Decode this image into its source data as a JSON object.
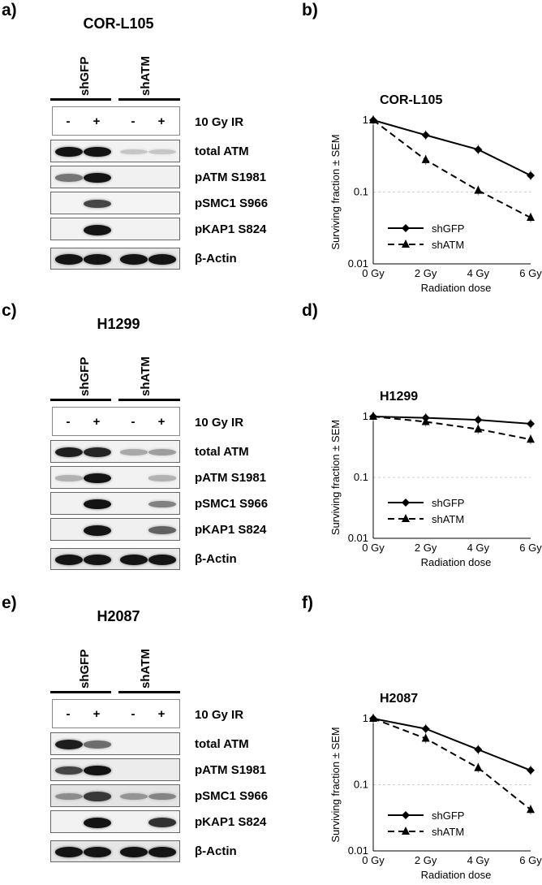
{
  "condition_labels": [
    "shGFP",
    "shATM"
  ],
  "ir_signs": [
    "-",
    "+",
    "-",
    "+"
  ],
  "ir_label": "10 Gy IR",
  "band_colors": {
    "strong": "#202020",
    "light": "#9a9a9a"
  },
  "rows": [
    {
      "panel": "a)",
      "cell_line": "COR-L105",
      "blots": [
        {
          "label": "total ATM",
          "bg": "#f2f2f2",
          "lanes": [
            0.95,
            0.95,
            0.05,
            0.05
          ]
        },
        {
          "label": "pATM S1981",
          "bg": "#f1f1f1",
          "lanes": [
            0.45,
            0.95,
            0.0,
            0.0
          ]
        },
        {
          "label": "pSMC1 S966",
          "bg": "#f4f4f4",
          "lanes": [
            0.0,
            0.7,
            0.0,
            0.0
          ]
        },
        {
          "label": "pKAP1 S824",
          "bg": "#f2f2f2",
          "lanes": [
            0.0,
            1.0,
            0.0,
            0.0
          ]
        },
        {
          "label": "β-Actin",
          "bg": "#e8e8e8",
          "lanes": [
            0.95,
            0.95,
            0.95,
            0.95
          ]
        }
      ],
      "chart_panel": "b)"
    },
    {
      "panel": "c)",
      "cell_line": "H1299",
      "blots": [
        {
          "label": "total ATM",
          "bg": "#f2f2f2",
          "lanes": [
            0.9,
            0.85,
            0.2,
            0.25
          ]
        },
        {
          "label": "pATM S1981",
          "bg": "#f2f2f2",
          "lanes": [
            0.15,
            0.95,
            0.0,
            0.15
          ]
        },
        {
          "label": "pSMC1 S966",
          "bg": "#f2f2f2",
          "lanes": [
            0.0,
            0.95,
            0.0,
            0.4
          ]
        },
        {
          "label": "pKAP1 S824",
          "bg": "#f0f0f0",
          "lanes": [
            0.0,
            1.0,
            0.0,
            0.55
          ]
        },
        {
          "label": "β-Actin",
          "bg": "#e8e8e8",
          "lanes": [
            0.95,
            0.95,
            0.95,
            0.95
          ]
        }
      ],
      "chart_panel": "d)"
    },
    {
      "panel": "e)",
      "cell_line": "H2087",
      "blots": [
        {
          "label": "total ATM",
          "bg": "#f2f2f2",
          "lanes": [
            0.9,
            0.5,
            0.0,
            0.0
          ]
        },
        {
          "label": "pATM S1981",
          "bg": "#ececec",
          "lanes": [
            0.7,
            0.95,
            0.0,
            0.0
          ]
        },
        {
          "label": "pSMC1 S966",
          "bg": "#e4e4e4",
          "lanes": [
            0.3,
            0.75,
            0.25,
            0.35
          ]
        },
        {
          "label": "pKAP1 S824",
          "bg": "#f2f2f2",
          "lanes": [
            0.0,
            1.0,
            0.0,
            0.8
          ]
        },
        {
          "label": "β-Actin",
          "bg": "#e6e6e6",
          "lanes": [
            0.95,
            0.95,
            0.95,
            0.95
          ]
        }
      ],
      "chart_panel": "f)"
    }
  ],
  "chart_data": [
    {
      "type": "line",
      "title": "COR-L105",
      "xlabel": "Radiation dose",
      "ylabel": "Surviving fraction ± SEM",
      "categories": [
        "0 Gy",
        "2 Gy",
        "4 Gy",
        "6 Gy"
      ],
      "y_scale": "log",
      "ylim": [
        0.01,
        1
      ],
      "yticks": [
        "1",
        "0.1",
        "0.01"
      ],
      "grid": "horizontal dashed",
      "legend": "bottom-left",
      "series": [
        {
          "name": "shGFP",
          "values": [
            1,
            0.62,
            0.39,
            0.17
          ],
          "marker": "diamond",
          "line": "solid"
        },
        {
          "name": "shATM",
          "values": [
            1,
            0.28,
            0.105,
            0.044
          ],
          "marker": "triangle",
          "line": "dashed"
        }
      ]
    },
    {
      "type": "line",
      "title": "H1299",
      "xlabel": "Radiation dose",
      "ylabel": "Surviving fraction ± SEM",
      "categories": [
        "0 Gy",
        "2 Gy",
        "4 Gy",
        "6 Gy"
      ],
      "y_scale": "log",
      "ylim": [
        0.01,
        1
      ],
      "yticks": [
        "1",
        "0.1",
        "0.01"
      ],
      "grid": "horizontal dashed",
      "legend": "bottom-left",
      "series": [
        {
          "name": "shGFP",
          "values": [
            1,
            0.95,
            0.88,
            0.76
          ],
          "marker": "diamond",
          "line": "solid"
        },
        {
          "name": "shATM",
          "values": [
            1,
            0.82,
            0.62,
            0.42
          ],
          "marker": "triangle",
          "line": "dashed"
        }
      ]
    },
    {
      "type": "line",
      "title": "H2087",
      "xlabel": "Radiation dose",
      "ylabel": "Surviving fraction ± SEM",
      "categories": [
        "0 Gy",
        "2 Gy",
        "4 Gy",
        "6 Gy"
      ],
      "y_scale": "log",
      "ylim": [
        0.01,
        1
      ],
      "yticks": [
        "1",
        "0.1",
        "0.01"
      ],
      "grid": "horizontal dashed",
      "legend": "bottom-left",
      "series": [
        {
          "name": "shGFP",
          "values": [
            1,
            0.7,
            0.34,
            0.165
          ],
          "marker": "diamond",
          "line": "solid"
        },
        {
          "name": "shATM",
          "values": [
            1,
            0.5,
            0.18,
            0.042
          ],
          "marker": "triangle",
          "line": "dashed"
        }
      ]
    }
  ]
}
